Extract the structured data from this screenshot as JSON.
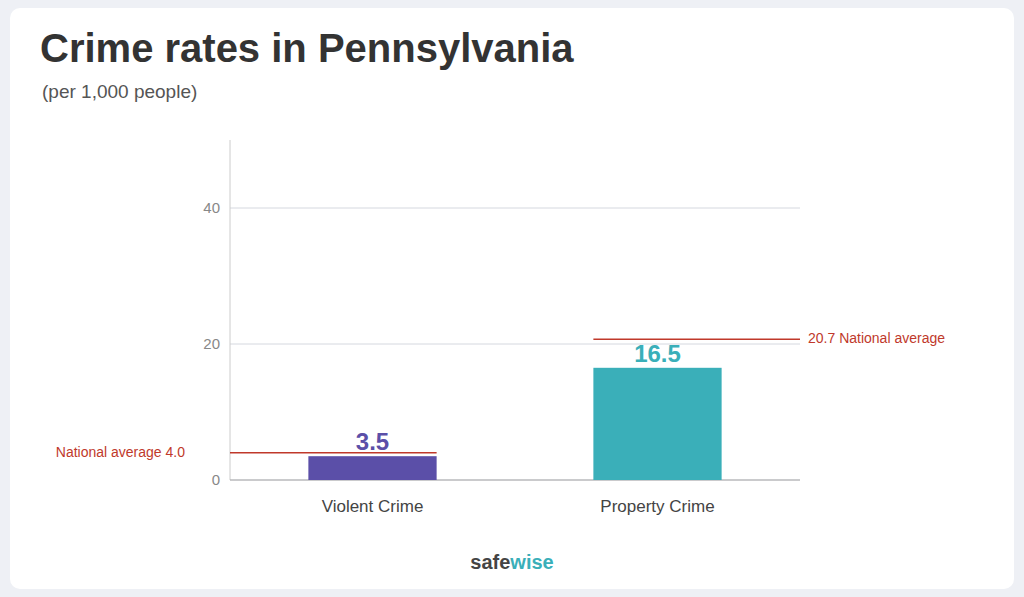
{
  "chart_data": {
    "type": "bar",
    "title": "Crime rates in Pennsylvania",
    "subtitle": "(per 1,000 people)",
    "categories": [
      "Violent Crime",
      "Property Crime"
    ],
    "values": [
      3.5,
      16.5
    ],
    "colors": [
      "#5b4fa8",
      "#3aafb9"
    ],
    "ylim": [
      0,
      50
    ],
    "yticks": [
      0,
      20,
      40
    ],
    "grid": true,
    "data_labels": true,
    "reference_lines": [
      {
        "value": 4.0,
        "label": "National average 4.0",
        "color": "#c0392b"
      },
      {
        "value": 20.7,
        "label": "20.7 National average",
        "color": "#c0392b"
      }
    ],
    "annotations": [
      {
        "text": "safe",
        "color": "#444444"
      },
      {
        "text": "wise",
        "color": "#3aafb9"
      }
    ]
  }
}
